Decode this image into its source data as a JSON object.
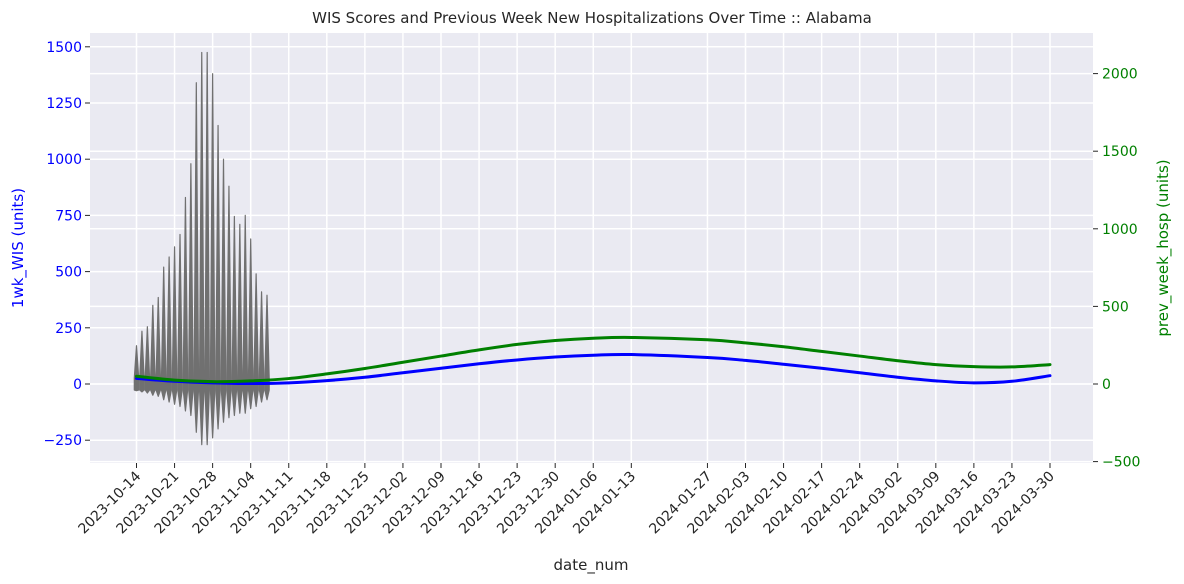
{
  "chart_data": {
    "type": "line",
    "title": "WIS Scores and Previous Week New Hospitalizations Over Time :: Alabama",
    "xlabel": "date_num",
    "ylabel_left": "1wk_WIS (units)",
    "ylabel_right": "prev_week_hosp (units)",
    "x_ticks": [
      "2023-10-14",
      "2023-10-21",
      "2023-10-28",
      "2023-11-04",
      "2023-11-11",
      "2023-11-18",
      "2023-11-25",
      "2023-12-02",
      "2023-12-09",
      "2023-12-16",
      "2023-12-23",
      "2023-12-30",
      "2024-01-06",
      "2024-01-13",
      "2024-01-27",
      "2024-02-03",
      "2024-02-10",
      "2024-02-17",
      "2024-02-24",
      "2024-03-02",
      "2024-03-09",
      "2024-03-16",
      "2024-03-23",
      "2024-03-30"
    ],
    "ylim_left": [
      -280,
      1500
    ],
    "yticks_left": [
      -250,
      0,
      250,
      500,
      750,
      1000,
      1250,
      1500
    ],
    "ylim_right": [
      -500,
      2200
    ],
    "yticks_right": [
      -500,
      0,
      500,
      1000,
      1500,
      2000
    ],
    "grid": true,
    "series": [
      {
        "axis": "left",
        "color": "#0000ff",
        "points": [
          [
            "2023-10-14",
            25
          ],
          [
            "2023-10-21",
            12
          ],
          [
            "2023-10-28",
            5
          ],
          [
            "2023-11-04",
            2
          ],
          [
            "2023-11-11",
            5
          ],
          [
            "2023-11-18",
            15
          ],
          [
            "2023-11-25",
            30
          ],
          [
            "2023-12-02",
            50
          ],
          [
            "2023-12-09",
            70
          ],
          [
            "2023-12-16",
            90
          ],
          [
            "2023-12-23",
            107
          ],
          [
            "2023-12-30",
            120
          ],
          [
            "2024-01-06",
            128
          ],
          [
            "2024-01-13",
            131
          ],
          [
            "2024-01-27",
            118
          ],
          [
            "2024-02-03",
            105
          ],
          [
            "2024-02-10",
            88
          ],
          [
            "2024-02-17",
            70
          ],
          [
            "2024-02-24",
            50
          ],
          [
            "2024-03-02",
            30
          ],
          [
            "2024-03-09",
            14
          ],
          [
            "2024-03-16",
            5
          ],
          [
            "2024-03-23",
            12
          ],
          [
            "2024-03-30",
            37
          ]
        ]
      },
      {
        "axis": "right",
        "color": "#008000",
        "points": [
          [
            "2023-10-14",
            50
          ],
          [
            "2023-10-21",
            25
          ],
          [
            "2023-10-28",
            15
          ],
          [
            "2023-11-04",
            20
          ],
          [
            "2023-11-11",
            35
          ],
          [
            "2023-11-18",
            65
          ],
          [
            "2023-11-25",
            100
          ],
          [
            "2023-12-02",
            140
          ],
          [
            "2023-12-09",
            180
          ],
          [
            "2023-12-16",
            220
          ],
          [
            "2023-12-23",
            255
          ],
          [
            "2023-12-30",
            280
          ],
          [
            "2024-01-06",
            295
          ],
          [
            "2024-01-13",
            300
          ],
          [
            "2024-01-27",
            285
          ],
          [
            "2024-02-03",
            265
          ],
          [
            "2024-02-10",
            240
          ],
          [
            "2024-02-17",
            210
          ],
          [
            "2024-02-24",
            180
          ],
          [
            "2024-03-02",
            150
          ],
          [
            "2024-03-09",
            125
          ],
          [
            "2024-03-16",
            112
          ],
          [
            "2024-03-23",
            110
          ],
          [
            "2024-03-30",
            125
          ]
        ]
      }
    ],
    "violins": {
      "color": "#707070",
      "start": "2023-10-14",
      "days_between": 1,
      "ranges": [
        [
          -30,
          170
        ],
        [
          -35,
          235
        ],
        [
          -40,
          255
        ],
        [
          -50,
          350
        ],
        [
          -55,
          385
        ],
        [
          -70,
          520
        ],
        [
          -80,
          565
        ],
        [
          -90,
          610
        ],
        [
          -100,
          665
        ],
        [
          -120,
          830
        ],
        [
          -140,
          980
        ],
        [
          -215,
          1340
        ],
        [
          -270,
          1475
        ],
        [
          -270,
          1475
        ],
        [
          -240,
          1380
        ],
        [
          -200,
          1150
        ],
        [
          -170,
          1000
        ],
        [
          -150,
          880
        ],
        [
          -140,
          745
        ],
        [
          -130,
          710
        ],
        [
          -130,
          750
        ],
        [
          -110,
          645
        ],
        [
          -100,
          490
        ],
        [
          -80,
          410
        ],
        [
          -70,
          395
        ]
      ]
    }
  }
}
